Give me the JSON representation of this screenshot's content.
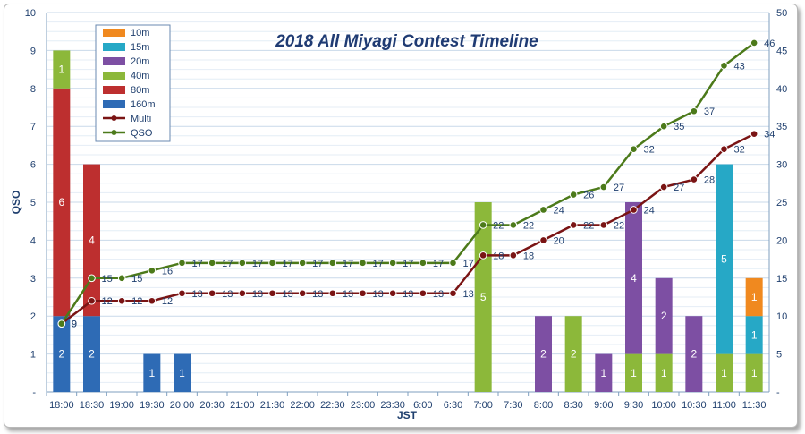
{
  "chart_data": {
    "type": "bar",
    "title": "2018 All Miyagi Contest Timeline",
    "xlabel": "JST",
    "ylabel": "QSO",
    "ylim": [
      0,
      10
    ],
    "ylim_right": [
      0,
      50
    ],
    "y_ticks": [
      "-",
      "1",
      "2",
      "3",
      "4",
      "5",
      "6",
      "7",
      "8",
      "9",
      "10"
    ],
    "y_ticks_right": [
      "-",
      "5",
      "10",
      "15",
      "20",
      "25",
      "30",
      "35",
      "40",
      "45",
      "50"
    ],
    "grid": true,
    "legend_position": "top-left",
    "categories": [
      "18:00",
      "18:30",
      "19:00",
      "19:30",
      "20:00",
      "20:30",
      "21:00",
      "21:30",
      "22:00",
      "22:30",
      "23:00",
      "23:30",
      "6:00",
      "6:30",
      "7:00",
      "7:30",
      "8:00",
      "8:30",
      "9:00",
      "9:30",
      "10:00",
      "10:30",
      "11:00",
      "11:30"
    ],
    "stacked_series": [
      {
        "name": "160m",
        "color": "#2e6bb5",
        "values": [
          2,
          2,
          0,
          1,
          1,
          0,
          0,
          0,
          0,
          0,
          0,
          0,
          0,
          0,
          0,
          0,
          0,
          0,
          0,
          0,
          0,
          0,
          0,
          0
        ]
      },
      {
        "name": "80m",
        "color": "#bd2f2f",
        "values": [
          6,
          4,
          0,
          0,
          0,
          0,
          0,
          0,
          0,
          0,
          0,
          0,
          0,
          0,
          0,
          0,
          0,
          0,
          0,
          0,
          0,
          0,
          0,
          0
        ]
      },
      {
        "name": "40m",
        "color": "#8cb83a",
        "values": [
          1,
          0,
          0,
          0,
          0,
          0,
          0,
          0,
          0,
          0,
          0,
          0,
          0,
          0,
          5,
          0,
          0,
          2,
          0,
          1,
          1,
          0,
          1,
          1
        ]
      },
      {
        "name": "20m",
        "color": "#7d4fa3",
        "values": [
          0,
          0,
          0,
          0,
          0,
          0,
          0,
          0,
          0,
          0,
          0,
          0,
          0,
          0,
          0,
          0,
          2,
          0,
          1,
          4,
          2,
          2,
          0,
          0
        ]
      },
      {
        "name": "15m",
        "color": "#26a8c6",
        "values": [
          0,
          0,
          0,
          0,
          0,
          0,
          0,
          0,
          0,
          0,
          0,
          0,
          0,
          0,
          0,
          0,
          0,
          0,
          0,
          0,
          0,
          0,
          5,
          1
        ]
      },
      {
        "name": "10m",
        "color": "#f0891f",
        "values": [
          0,
          0,
          0,
          0,
          0,
          0,
          0,
          0,
          0,
          0,
          0,
          0,
          0,
          0,
          0,
          0,
          0,
          0,
          0,
          0,
          0,
          0,
          0,
          1
        ]
      }
    ],
    "line_series": [
      {
        "name": "Multi",
        "color": "#7a1414",
        "axis": "right",
        "values": [
          9,
          12,
          12,
          12,
          13,
          13,
          13,
          13,
          13,
          13,
          13,
          13,
          13,
          13,
          18,
          18,
          20,
          22,
          22,
          24,
          27,
          28,
          32,
          34
        ]
      },
      {
        "name": "QSO",
        "color": "#4c7a1a",
        "axis": "right",
        "values": [
          9,
          15,
          15,
          16,
          17,
          17,
          17,
          17,
          17,
          17,
          17,
          17,
          17,
          17,
          22,
          22,
          24,
          26,
          27,
          32,
          35,
          37,
          43,
          46
        ]
      }
    ],
    "legend": [
      "10m",
      "15m",
      "20m",
      "40m",
      "80m",
      "160m",
      "Multi",
      "QSO"
    ]
  }
}
